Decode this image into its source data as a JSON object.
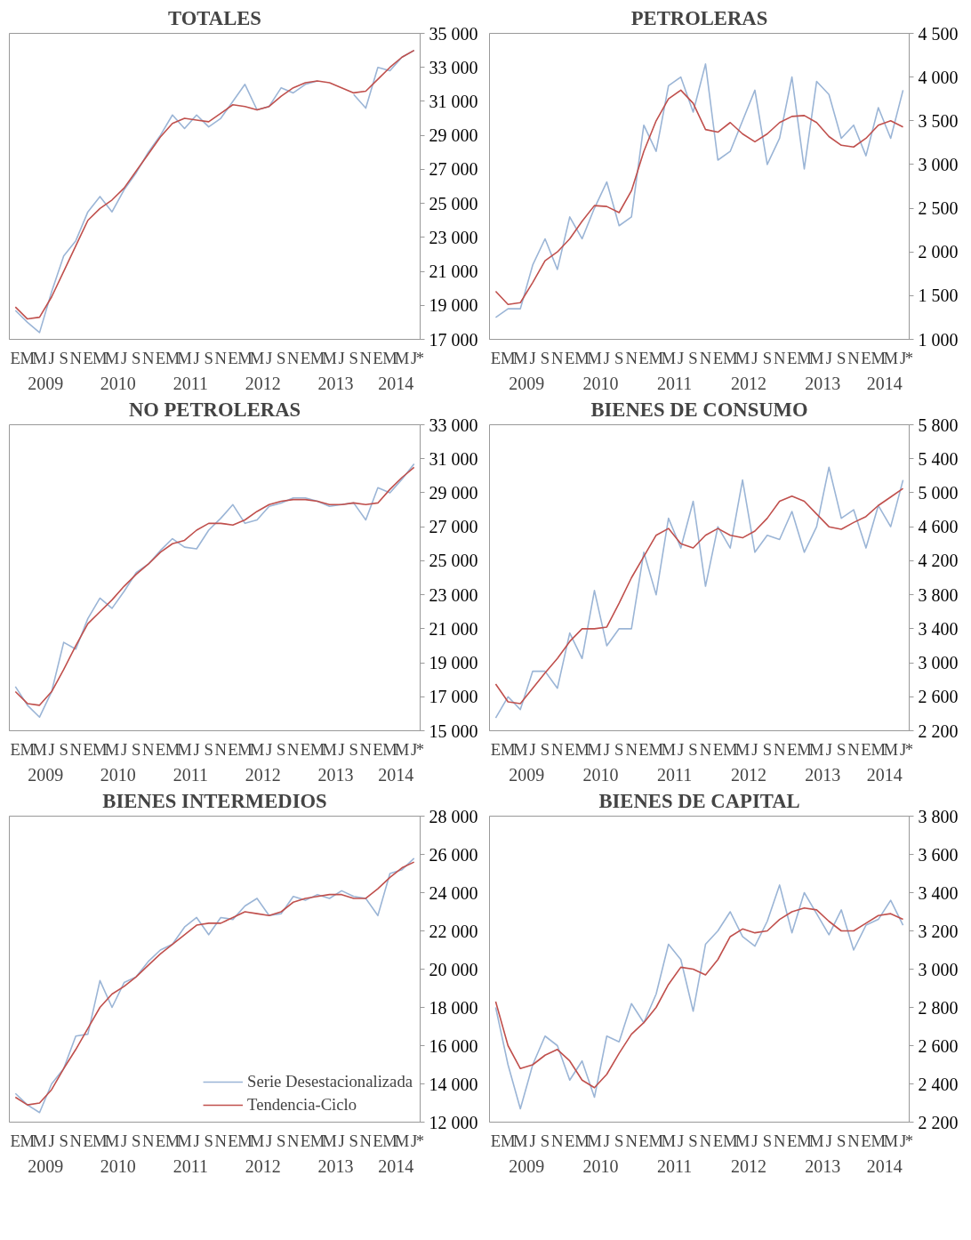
{
  "chart_data": [
    {
      "type": "line",
      "title": "TOTALES",
      "categories": [
        "E",
        "M",
        "M",
        "J",
        "S",
        "N",
        "E",
        "M",
        "M",
        "J",
        "S",
        "N",
        "E",
        "M",
        "M",
        "J",
        "S",
        "N",
        "E",
        "M",
        "M",
        "J",
        "S",
        "N",
        "E",
        "M",
        "M",
        "J",
        "S",
        "N",
        "E",
        "M",
        "M",
        "J"
      ],
      "annotations": [
        "2009",
        "2010",
        "2011",
        "2012",
        "2013",
        "2014",
        "*"
      ],
      "ylim": [
        17000,
        35000
      ],
      "yticks": [
        {
          "value": 17000,
          "label": "17 000"
        },
        {
          "value": 19000,
          "label": "19 000"
        },
        {
          "value": 21000,
          "label": "21 000"
        },
        {
          "value": 23000,
          "label": "23 000"
        },
        {
          "value": 25000,
          "label": "25 000"
        },
        {
          "value": 27000,
          "label": "27 000"
        },
        {
          "value": 29000,
          "label": "29 000"
        },
        {
          "value": 31000,
          "label": "31 000"
        },
        {
          "value": 33000,
          "label": "33 000"
        },
        {
          "value": 35000,
          "label": "35 000"
        }
      ],
      "grid": false,
      "series": [
        {
          "color": "#9bb5d6",
          "values": [
            18700,
            18000,
            17400,
            19800,
            21900,
            22800,
            24500,
            25400,
            24500,
            25800,
            26800,
            28000,
            29000,
            30200,
            29400,
            30200,
            29500,
            30000,
            31000,
            32000,
            30500,
            30700,
            31800,
            31500,
            32000,
            32200,
            null,
            null,
            31400,
            30600,
            33000,
            32800,
            33600,
            34000
          ]
        },
        {
          "color": "#c0504d",
          "values": [
            18900,
            18200,
            18300,
            19500,
            21000,
            22500,
            24000,
            24700,
            25200,
            25900,
            26900,
            27900,
            28900,
            29700,
            30000,
            29900,
            29800,
            30300,
            30800,
            30700,
            30500,
            30700,
            31300,
            31800,
            32100,
            32200,
            32100,
            31800,
            31500,
            31600,
            32300,
            33000,
            33600,
            34000
          ]
        }
      ]
    },
    {
      "type": "line",
      "title": "PETROLERAS",
      "categories": [
        "E",
        "M",
        "M",
        "J",
        "S",
        "N",
        "E",
        "M",
        "M",
        "J",
        "S",
        "N",
        "E",
        "M",
        "M",
        "J",
        "S",
        "N",
        "E",
        "M",
        "M",
        "J",
        "S",
        "N",
        "E",
        "M",
        "M",
        "J",
        "S",
        "N",
        "E",
        "M",
        "M",
        "J"
      ],
      "annotations": [
        "2009",
        "2010",
        "2011",
        "2012",
        "2013",
        "2014",
        "*"
      ],
      "ylim": [
        1000,
        4500
      ],
      "yticks": [
        {
          "value": 1000,
          "label": "1 000"
        },
        {
          "value": 1500,
          "label": "1 500"
        },
        {
          "value": 2000,
          "label": "2 000"
        },
        {
          "value": 2500,
          "label": "2 500"
        },
        {
          "value": 3000,
          "label": "3 000"
        },
        {
          "value": 3500,
          "label": "3 500"
        },
        {
          "value": 4000,
          "label": "4 000"
        },
        {
          "value": 4500,
          "label": "4 500"
        }
      ],
      "grid": false,
      "series": [
        {
          "color": "#9bb5d6",
          "values": [
            1250,
            1350,
            1350,
            1850,
            2150,
            1800,
            2400,
            2150,
            2500,
            2800,
            2300,
            2400,
            3450,
            3150,
            3900,
            4000,
            3600,
            4150,
            3050,
            3150,
            3500,
            3850,
            3000,
            3300,
            4000,
            2950,
            3950,
            3800,
            3300,
            3450,
            3100,
            3650,
            3300,
            3850
          ]
        },
        {
          "color": "#c0504d",
          "values": [
            1550,
            1400,
            1420,
            1650,
            1900,
            2000,
            2150,
            2350,
            2530,
            2520,
            2450,
            2700,
            3150,
            3500,
            3750,
            3850,
            3700,
            3400,
            3370,
            3480,
            3350,
            3260,
            3350,
            3480,
            3550,
            3560,
            3480,
            3320,
            3220,
            3200,
            3300,
            3450,
            3500,
            3430
          ]
        }
      ]
    },
    {
      "type": "line",
      "title": "NO PETROLERAS",
      "categories": [
        "E",
        "M",
        "M",
        "J",
        "S",
        "N",
        "E",
        "M",
        "M",
        "J",
        "S",
        "N",
        "E",
        "M",
        "M",
        "J",
        "S",
        "N",
        "E",
        "M",
        "M",
        "J",
        "S",
        "N",
        "E",
        "M",
        "M",
        "J",
        "S",
        "N",
        "E",
        "M",
        "M",
        "J"
      ],
      "annotations": [
        "2009",
        "2010",
        "2011",
        "2012",
        "2013",
        "2014",
        "*"
      ],
      "ylim": [
        15000,
        33000
      ],
      "yticks": [
        {
          "value": 15000,
          "label": "15 000"
        },
        {
          "value": 17000,
          "label": "17 000"
        },
        {
          "value": 19000,
          "label": "19 000"
        },
        {
          "value": 21000,
          "label": "21 000"
        },
        {
          "value": 23000,
          "label": "23 000"
        },
        {
          "value": 25000,
          "label": "25 000"
        },
        {
          "value": 27000,
          "label": "27 000"
        },
        {
          "value": 29000,
          "label": "29 000"
        },
        {
          "value": 31000,
          "label": "31 000"
        },
        {
          "value": 33000,
          "label": "33 000"
        }
      ],
      "grid": false,
      "series": [
        {
          "color": "#9bb5d6",
          "values": [
            17600,
            16500,
            15800,
            17300,
            20200,
            19800,
            21600,
            22800,
            22200,
            23200,
            24300,
            24800,
            25600,
            26300,
            25800,
            25700,
            26800,
            27500,
            28300,
            27200,
            27400,
            28200,
            28400,
            28700,
            28700,
            28500,
            28200,
            28300,
            28400,
            27400,
            29300,
            29000,
            29800,
            30700
          ]
        },
        {
          "color": "#c0504d",
          "values": [
            17300,
            16600,
            16500,
            17300,
            18600,
            20000,
            21300,
            22000,
            22700,
            23500,
            24200,
            24800,
            25500,
            26000,
            26200,
            26800,
            27200,
            27200,
            27100,
            27400,
            27900,
            28300,
            28500,
            28600,
            28600,
            28500,
            28300,
            28300,
            28400,
            28300,
            28400,
            29200,
            29900,
            30500
          ]
        }
      ]
    },
    {
      "type": "line",
      "title": "BIENES DE CONSUMO",
      "categories": [
        "E",
        "M",
        "M",
        "J",
        "S",
        "N",
        "E",
        "M",
        "M",
        "J",
        "S",
        "N",
        "E",
        "M",
        "M",
        "J",
        "S",
        "N",
        "E",
        "M",
        "M",
        "J",
        "S",
        "N",
        "E",
        "M",
        "M",
        "J",
        "S",
        "N",
        "E",
        "M",
        "M",
        "J"
      ],
      "annotations": [
        "2009",
        "2010",
        "2011",
        "2012",
        "2013",
        "2014",
        "*"
      ],
      "ylim": [
        2200,
        5800
      ],
      "yticks": [
        {
          "value": 2200,
          "label": "2 200"
        },
        {
          "value": 2600,
          "label": "2 600"
        },
        {
          "value": 3000,
          "label": "3 000"
        },
        {
          "value": 3400,
          "label": "3 400"
        },
        {
          "value": 3800,
          "label": "3 800"
        },
        {
          "value": 4200,
          "label": "4 200"
        },
        {
          "value": 4600,
          "label": "4 600"
        },
        {
          "value": 5000,
          "label": "5 000"
        },
        {
          "value": 5400,
          "label": "5 400"
        },
        {
          "value": 5800,
          "label": "5 800"
        }
      ],
      "grid": false,
      "series": [
        {
          "color": "#9bb5d6",
          "values": [
            2350,
            2600,
            2450,
            2900,
            2900,
            2700,
            3350,
            3050,
            3850,
            3200,
            3400,
            3400,
            4300,
            3800,
            4700,
            4350,
            4900,
            3900,
            4600,
            4350,
            5150,
            4300,
            4500,
            4450,
            4780,
            4300,
            4600,
            5300,
            4700,
            4800,
            4350,
            4850,
            4600,
            5150
          ]
        },
        {
          "color": "#c0504d",
          "values": [
            2750,
            2540,
            2520,
            2700,
            2880,
            3050,
            3250,
            3400,
            3400,
            3420,
            3700,
            4000,
            4250,
            4500,
            4580,
            4400,
            4350,
            4500,
            4580,
            4500,
            4470,
            4550,
            4700,
            4900,
            4960,
            4900,
            4750,
            4600,
            4570,
            4650,
            4720,
            4850,
            4950,
            5050
          ]
        }
      ]
    },
    {
      "type": "line",
      "title": "BIENES INTERMEDIOS",
      "categories": [
        "E",
        "M",
        "M",
        "J",
        "S",
        "N",
        "E",
        "M",
        "M",
        "J",
        "S",
        "N",
        "E",
        "M",
        "M",
        "J",
        "S",
        "N",
        "E",
        "M",
        "M",
        "J",
        "S",
        "N",
        "E",
        "M",
        "M",
        "J",
        "S",
        "N",
        "E",
        "M",
        "M",
        "J"
      ],
      "annotations": [
        "2009",
        "2010",
        "2011",
        "2012",
        "2013",
        "2014",
        "*"
      ],
      "ylim": [
        12000,
        28000
      ],
      "yticks": [
        {
          "value": 12000,
          "label": "12 000"
        },
        {
          "value": 14000,
          "label": "14 000"
        },
        {
          "value": 16000,
          "label": "16 000"
        },
        {
          "value": 18000,
          "label": "18 000"
        },
        {
          "value": 20000,
          "label": "20 000"
        },
        {
          "value": 22000,
          "label": "22 000"
        },
        {
          "value": 24000,
          "label": "24 000"
        },
        {
          "value": 26000,
          "label": "26 000"
        },
        {
          "value": 28000,
          "label": "28 000"
        }
      ],
      "grid": false,
      "legend": "bottom right",
      "series": [
        {
          "name": "Serie Desestacionalizada",
          "color": "#9bb5d6",
          "values": [
            13500,
            12900,
            12500,
            14000,
            14800,
            16500,
            16600,
            19400,
            18000,
            19300,
            19600,
            20400,
            21000,
            21300,
            22200,
            22700,
            21800,
            22700,
            22600,
            23300,
            23700,
            22800,
            22900,
            23800,
            23600,
            23900,
            23700,
            24100,
            23800,
            23700,
            22800,
            25000,
            25200,
            25800
          ]
        },
        {
          "name": "Tendencia-Ciclo",
          "color": "#c0504d",
          "values": [
            13300,
            12900,
            13000,
            13700,
            14800,
            15800,
            16900,
            18000,
            18700,
            19100,
            19600,
            20200,
            20800,
            21300,
            21800,
            22300,
            22400,
            22400,
            22700,
            23000,
            22900,
            22800,
            23000,
            23500,
            23700,
            23800,
            23900,
            23900,
            23700,
            23700,
            24200,
            24800,
            25300,
            25600
          ]
        }
      ]
    },
    {
      "type": "line",
      "title": "BIENES DE CAPITAL",
      "categories": [
        "E",
        "M",
        "M",
        "J",
        "S",
        "N",
        "E",
        "M",
        "M",
        "J",
        "S",
        "N",
        "E",
        "M",
        "M",
        "J",
        "S",
        "N",
        "E",
        "M",
        "M",
        "J",
        "S",
        "N",
        "E",
        "M",
        "M",
        "J",
        "S",
        "N",
        "E",
        "M",
        "M",
        "J"
      ],
      "annotations": [
        "2009",
        "2010",
        "2011",
        "2012",
        "2013",
        "2014",
        "*"
      ],
      "ylim": [
        2200,
        3800
      ],
      "yticks": [
        {
          "value": 2200,
          "label": "2 200"
        },
        {
          "value": 2400,
          "label": "2 400"
        },
        {
          "value": 2600,
          "label": "2 600"
        },
        {
          "value": 2800,
          "label": "2 800"
        },
        {
          "value": 3000,
          "label": "3 000"
        },
        {
          "value": 3200,
          "label": "3 200"
        },
        {
          "value": 3400,
          "label": "3 400"
        },
        {
          "value": 3600,
          "label": "3 600"
        },
        {
          "value": 3800,
          "label": "3 800"
        }
      ],
      "grid": false,
      "series": [
        {
          "color": "#9bb5d6",
          "values": [
            2800,
            2500,
            2270,
            2500,
            2650,
            2600,
            2420,
            2520,
            2330,
            2650,
            2620,
            2820,
            2720,
            2870,
            3130,
            3050,
            2780,
            3130,
            3200,
            3300,
            3170,
            3120,
            3250,
            3440,
            3190,
            3400,
            3290,
            3180,
            3310,
            3100,
            3230,
            3260,
            3360,
            3230
          ]
        },
        {
          "color": "#c0504d",
          "values": [
            2830,
            2600,
            2480,
            2500,
            2550,
            2580,
            2520,
            2420,
            2380,
            2450,
            2560,
            2660,
            2720,
            2800,
            2920,
            3010,
            3000,
            2970,
            3050,
            3170,
            3210,
            3190,
            3200,
            3260,
            3300,
            3320,
            3310,
            3250,
            3200,
            3200,
            3240,
            3280,
            3290,
            3260
          ]
        }
      ]
    }
  ]
}
